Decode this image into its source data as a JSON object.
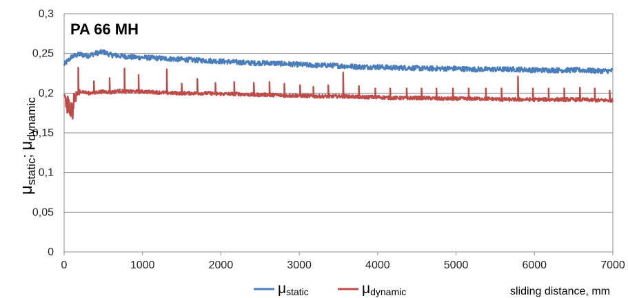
{
  "chart_data": {
    "type": "line",
    "title": "PA 66 MH",
    "ylabel": {
      "mu": "μ",
      "static_sub": "static",
      "sep": "; ",
      "dynamic_sub": "dynamic"
    },
    "xlabel": "sliding distance, mm",
    "xlim": [
      0,
      7000
    ],
    "ylim": [
      0,
      0.3
    ],
    "x_ticks": [
      0,
      1000,
      2000,
      3000,
      4000,
      5000,
      6000,
      7000
    ],
    "x_tick_labels": [
      "0",
      "1000",
      "2000",
      "3000",
      "4000",
      "5000",
      "6000",
      "7000"
    ],
    "y_ticks": [
      0,
      0.05,
      0.1,
      0.15,
      0.2,
      0.25,
      0.3
    ],
    "y_tick_labels": [
      "0",
      "0,05",
      "0,1",
      "0,15",
      "0,2",
      "0,25",
      "0,3"
    ],
    "grid": true,
    "legend_position": "bottom",
    "series": [
      {
        "name": "μstatic",
        "name_mu": "μ",
        "name_sub": "static",
        "color": "#4a7ebb",
        "x": [
          0,
          100,
          200,
          300,
          400,
          500,
          600,
          700,
          800,
          900,
          1000,
          1200,
          1400,
          1600,
          1800,
          2000,
          2200,
          2400,
          2600,
          2800,
          3000,
          3200,
          3400,
          3600,
          3800,
          4000,
          4200,
          4400,
          4600,
          4800,
          5000,
          5200,
          5400,
          5600,
          5800,
          6000,
          6200,
          6400,
          6600,
          6800,
          7000
        ],
        "y": [
          0.236,
          0.246,
          0.249,
          0.247,
          0.25,
          0.252,
          0.248,
          0.247,
          0.246,
          0.245,
          0.245,
          0.244,
          0.243,
          0.242,
          0.241,
          0.24,
          0.239,
          0.238,
          0.238,
          0.237,
          0.236,
          0.235,
          0.235,
          0.234,
          0.233,
          0.233,
          0.232,
          0.232,
          0.231,
          0.231,
          0.231,
          0.23,
          0.23,
          0.23,
          0.23,
          0.229,
          0.229,
          0.229,
          0.229,
          0.228,
          0.228
        ]
      },
      {
        "name": "μdynamic",
        "name_mu": "μ",
        "name_sub": "dynamic",
        "color": "#be4b48",
        "x": [
          0,
          50,
          100,
          150,
          200,
          300,
          400,
          500,
          600,
          700,
          800,
          1000,
          1200,
          1400,
          1600,
          1800,
          2000,
          2200,
          2400,
          2600,
          2800,
          3000,
          3200,
          3400,
          3600,
          3800,
          4000,
          4200,
          4400,
          4600,
          4800,
          5000,
          5200,
          5400,
          5600,
          5800,
          6000,
          6200,
          6400,
          6600,
          6800,
          7000
        ],
        "y": [
          0.198,
          0.185,
          0.176,
          0.196,
          0.203,
          0.2,
          0.201,
          0.202,
          0.201,
          0.203,
          0.202,
          0.202,
          0.201,
          0.2,
          0.2,
          0.2,
          0.199,
          0.199,
          0.198,
          0.198,
          0.197,
          0.197,
          0.196,
          0.196,
          0.196,
          0.195,
          0.195,
          0.194,
          0.194,
          0.194,
          0.193,
          0.193,
          0.193,
          0.193,
          0.192,
          0.192,
          0.192,
          0.192,
          0.192,
          0.192,
          0.191,
          0.191
        ],
        "spikes_x": [
          180,
          380,
          580,
          770,
          950,
          1310,
          1500,
          1700,
          1930,
          2170,
          2420,
          2620,
          2810,
          3010,
          3180,
          3370,
          3560,
          3760,
          3970,
          4160,
          4370,
          4560,
          4750,
          4960,
          5160,
          5380,
          5580,
          5790,
          5980,
          6180,
          6380,
          6580,
          6770,
          6960
        ],
        "spikes_y": [
          0.232,
          0.215,
          0.219,
          0.231,
          0.223,
          0.23,
          0.212,
          0.218,
          0.213,
          0.214,
          0.213,
          0.214,
          0.212,
          0.21,
          0.208,
          0.21,
          0.226,
          0.209,
          0.206,
          0.206,
          0.206,
          0.206,
          0.206,
          0.206,
          0.206,
          0.206,
          0.206,
          0.221,
          0.206,
          0.206,
          0.206,
          0.207,
          0.206,
          0.203
        ]
      }
    ]
  }
}
